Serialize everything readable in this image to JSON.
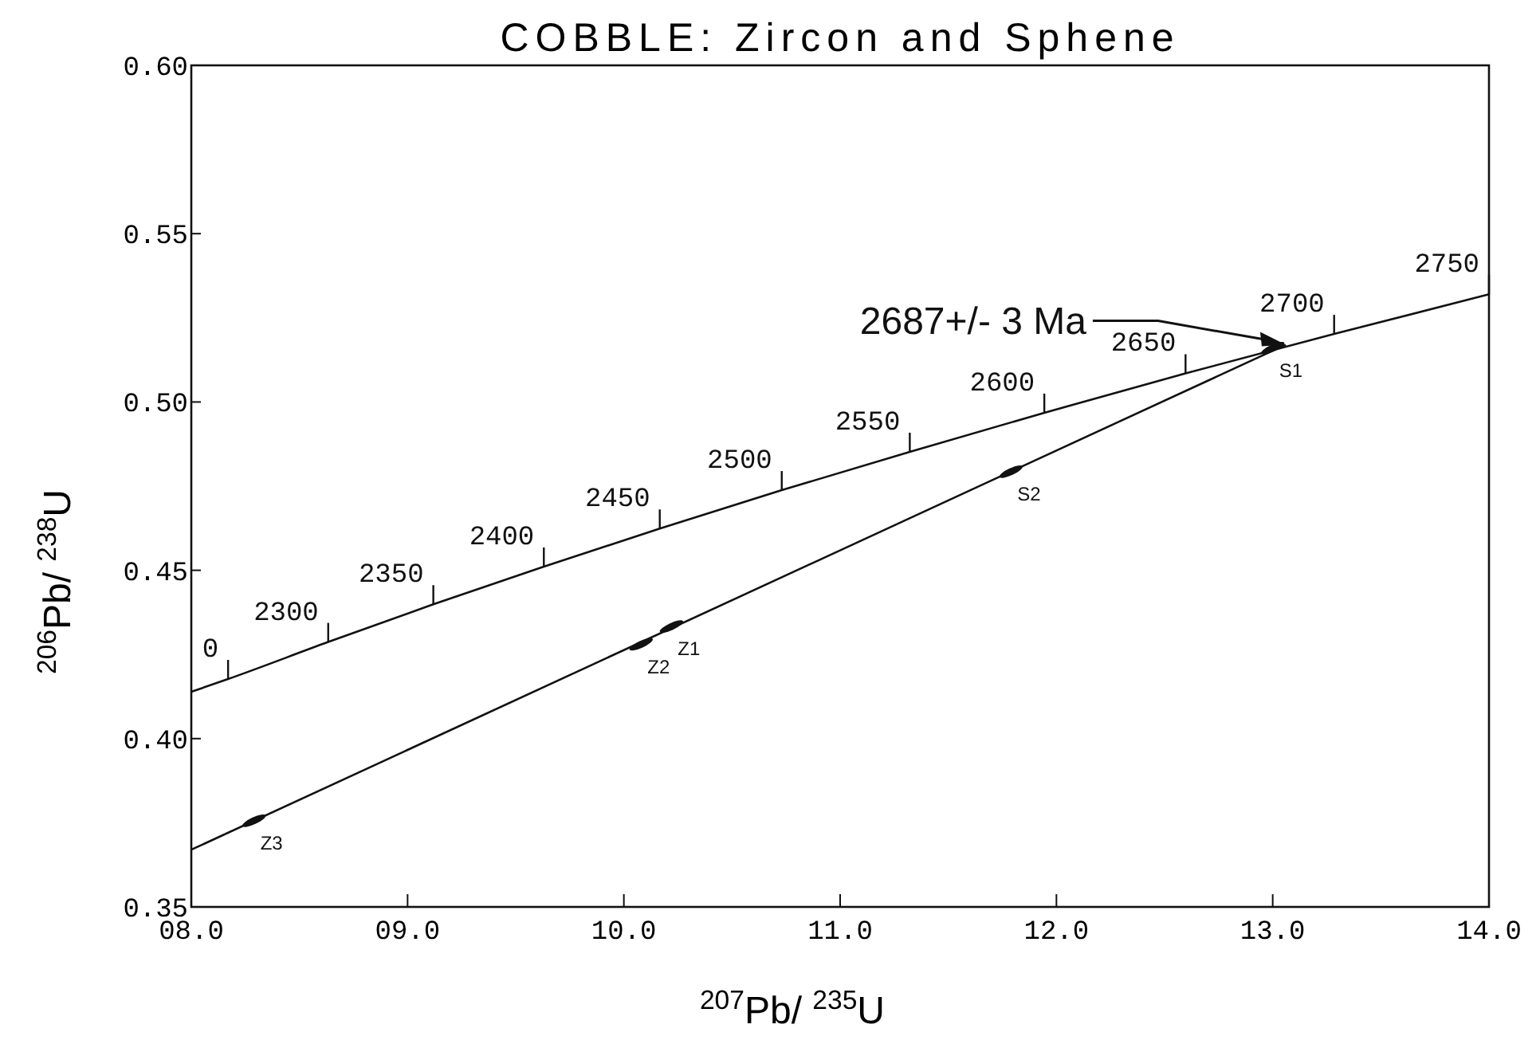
{
  "chart_data": {
    "type": "line",
    "title": "COBBLE: Zircon and Sphene",
    "xlabel": "$^{207}$Pb/ $^{235}$U",
    "ylabel": "$^{206}$Pb/ $^{238}$U",
    "xlim": [
      8.0,
      14.0
    ],
    "xticks": [
      {
        "value": 8,
        "label": "08.0"
      },
      {
        "value": 9,
        "label": "09.0"
      },
      {
        "value": 10,
        "label": "10.0"
      },
      {
        "value": 11,
        "label": "11.0"
      },
      {
        "value": 12,
        "label": "12.0"
      },
      {
        "value": 13,
        "label": "13.0"
      },
      {
        "value": 14,
        "label": "14.0"
      }
    ],
    "ylim": [
      0.35,
      0.6
    ],
    "yticks": [
      0.35,
      {
        "value": 0.4,
        "label": "0.40"
      },
      0.45,
      {
        "value": 0.5,
        "label": "0.50"
      },
      0.55,
      {
        "value": 0.6,
        "label": "0.60"
      }
    ],
    "grid": false,
    "series": [
      {
        "type": "line",
        "color": "#111111",
        "x": [
          8.0,
          8.17,
          8.633,
          9.119,
          9.63,
          10.166,
          10.73,
          11.322,
          11.944,
          12.597,
          13.284,
          14.0
        ],
        "values": [
          0.4139,
          0.4177,
          0.4287,
          0.4399,
          0.4511,
          0.4624,
          0.4738,
          0.4852,
          0.4968,
          0.5085,
          0.5202,
          0.532
        ]
      },
      {
        "type": "line",
        "color": "#111111",
        "x": [
          8.0,
          13.06
        ],
        "values": [
          0.367,
          0.517
        ]
      },
      {
        "type": "scatter",
        "color": "#111111",
        "x": [
          10.22,
          10.08,
          8.29,
          11.79,
          13.0
        ],
        "values": [
          0.4333,
          0.428,
          0.3756,
          0.4793,
          0.516
        ],
        "value_labels": [
          "Z1",
          "Z2",
          "Z3",
          "S2",
          "S1"
        ]
      }
    ],
    "annotations": [
      {
        "text": "2687+/- 3 Ma",
        "x": 13.06,
        "y": 0.517
      },
      {
        "text": "0",
        "x": 8.17,
        "y": 0.4177
      },
      {
        "text": "2300",
        "x": 8.633,
        "y": 0.4287
      },
      {
        "text": "2350",
        "x": 9.119,
        "y": 0.4399
      },
      {
        "text": "2400",
        "x": 9.63,
        "y": 0.4511
      },
      {
        "text": "2450",
        "x": 10.166,
        "y": 0.4624
      },
      {
        "text": "2500",
        "x": 10.73,
        "y": 0.4738
      },
      {
        "text": "2550",
        "x": 11.322,
        "y": 0.4852
      },
      {
        "text": "2600",
        "x": 11.944,
        "y": 0.4968
      },
      {
        "text": "2650",
        "x": 12.597,
        "y": 0.5085
      },
      {
        "text": "2700",
        "x": 13.284,
        "y": 0.5202
      },
      {
        "text": "2750",
        "x": 14.0,
        "y": 0.532
      }
    ]
  }
}
